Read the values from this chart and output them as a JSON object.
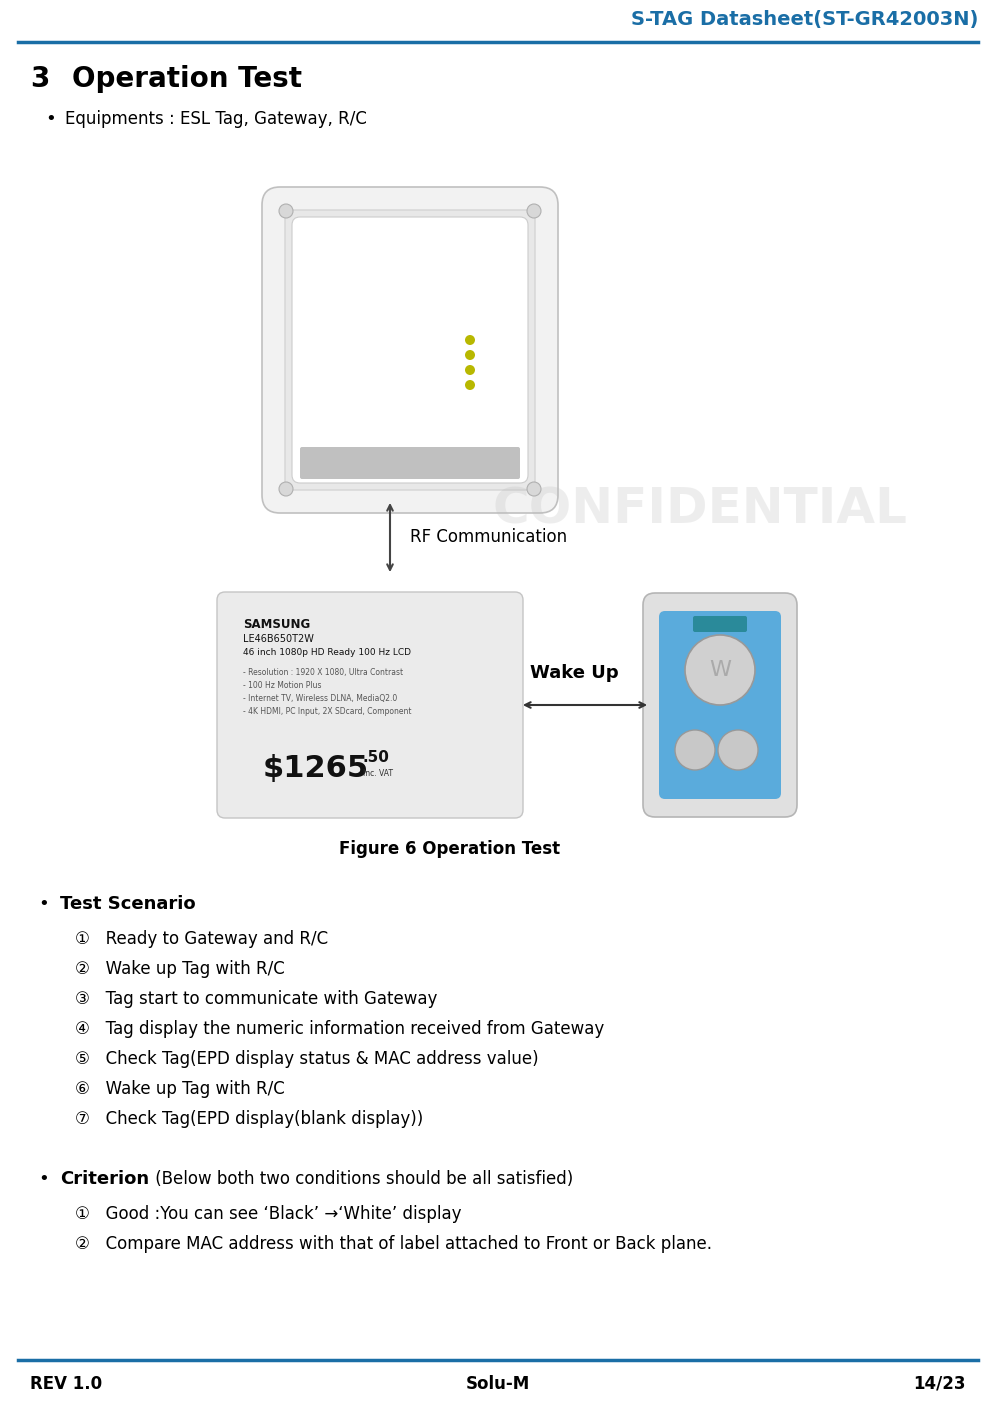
{
  "header_title": "S-TAG Datasheet(ST-GR42003N)",
  "header_color": "#1A6EA6",
  "header_line_color": "#1A6EA6",
  "section_number": "3",
  "section_title": "Operation Test",
  "bullet_equipment": "Equipments : ESL Tag, Gateway, R/C",
  "figure_caption": "Figure 6 Operation Test",
  "rf_label": "RF Communication",
  "wakeup_label": "Wake Up",
  "test_scenario_title": "Test Scenario",
  "test_scenario_items": [
    "①   Ready to Gateway and R/C",
    "②   Wake up Tag with R/C",
    "③   Tag start to communicate with Gateway",
    "④   Tag display the numeric information received from Gateway",
    "⑤   Check Tag(EPD display status & MAC address value)",
    "⑥   Wake up Tag with R/C",
    "⑦   Check Tag(EPD display(blank display))"
  ],
  "criterion_title": "Criterion",
  "criterion_subtitle": " (Below both two conditions should be all satisfied)",
  "criterion_items": [
    "①   Good :You can see ‘Black’ →‘White’ display",
    "②   Compare MAC address with that of label attached to Front or Back plane."
  ],
  "footer_left": "REV 1.0",
  "footer_center": "Solu-M",
  "footer_right": "14/23",
  "footer_line_color": "#1A6EA6",
  "bg_color": "#ffffff",
  "text_color": "#000000",
  "confidential_color": "#bbbbbb"
}
